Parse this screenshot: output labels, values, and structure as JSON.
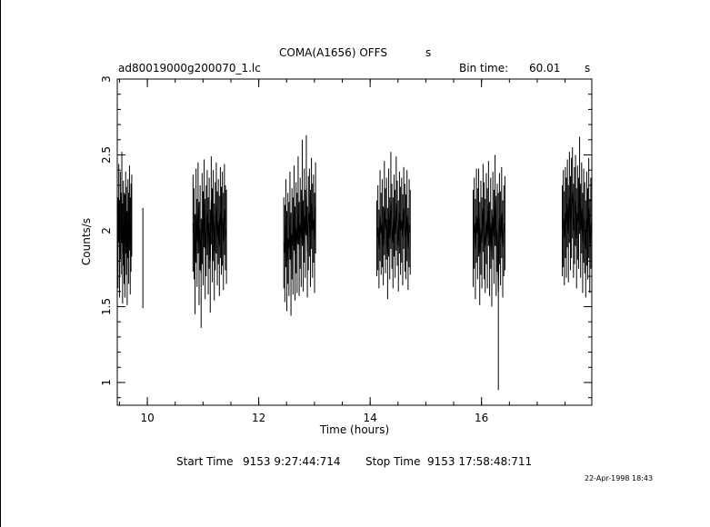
{
  "header": {
    "title": "COMA(A1656)  OFFS",
    "title_suffix": "s",
    "file_name": "ad80019000g200070_1.lc",
    "bin_time_label": "Bin time:",
    "bin_time_value": "60.01",
    "bin_time_unit": "s"
  },
  "footer": {
    "start_label": "Start Time",
    "start_value": "9153  9:27:44:714",
    "stop_label": "Stop Time",
    "stop_value": "9153 17:58:48:711",
    "date_stamp": "22-Apr-1998 18:43"
  },
  "chart_data": {
    "type": "scatter",
    "xlabel": "Time (hours)",
    "ylabel": "Counts/s",
    "xlim": [
      9.46,
      17.98
    ],
    "ylim": [
      0.85,
      3.0
    ],
    "x_ticks": [
      10,
      12,
      14,
      16
    ],
    "y_ticks": [
      1,
      1.5,
      2,
      2.5,
      3
    ],
    "x_tick_labels": [
      "10",
      "12",
      "14",
      "16"
    ],
    "y_tick_labels": [
      "1",
      "1.5",
      "2",
      "2.5",
      "3"
    ],
    "x_minor_step": 0.5,
    "y_minor_step": 0.1,
    "grid": false,
    "error_bars": true,
    "segments": [
      {
        "start": 9.46,
        "end": 9.72,
        "y": [
          2.05,
          1.92,
          2.18,
          1.88,
          2.1,
          1.98,
          2.22,
          1.85,
          2.05,
          1.95,
          1.9,
          2.12,
          2.0,
          1.82,
          2.08,
          1.95,
          2.15,
          1.9,
          2.02,
          2.1
        ],
        "err": [
          0.28,
          0.3,
          0.26,
          0.32,
          0.29,
          0.27,
          0.3,
          0.33,
          0.28,
          0.3,
          0.34,
          0.27,
          0.29,
          0.31,
          0.26,
          0.3,
          0.28,
          0.32,
          0.29,
          0.27
        ]
      },
      {
        "start": 9.92,
        "end": 9.92,
        "y": [
          1.82
        ],
        "err": [
          0.33
        ]
      },
      {
        "start": 10.82,
        "end": 11.42,
        "y": [
          2.05,
          1.98,
          1.78,
          2.1,
          1.92,
          2.15,
          1.85,
          2.02,
          1.72,
          2.08,
          1.95,
          2.18,
          1.88,
          2.0,
          2.12,
          1.9,
          2.05,
          1.8,
          2.2,
          1.97,
          2.1,
          1.86,
          2.03,
          2.15,
          1.95,
          2.06,
          1.9,
          2.12,
          2.0,
          2.08,
          1.93,
          2.14,
          2.02,
          1.96
        ],
        "err": [
          0.32,
          0.3,
          0.33,
          0.31,
          0.29,
          0.3,
          0.34,
          0.28,
          0.36,
          0.3,
          0.31,
          0.29,
          0.33,
          0.3,
          0.28,
          0.32,
          0.3,
          0.34,
          0.29,
          0.31,
          0.3,
          0.32,
          0.29,
          0.3,
          0.31,
          0.28,
          0.33,
          0.3,
          0.29,
          0.31,
          0.32,
          0.3,
          0.28,
          0.31
        ]
      },
      {
        "start": 12.45,
        "end": 13.02,
        "y": [
          1.92,
          1.85,
          2.05,
          1.8,
          1.95,
          1.88,
          2.1,
          1.78,
          1.98,
          1.9,
          2.15,
          1.85,
          2.02,
          1.92,
          2.2,
          1.88,
          2.05,
          1.95,
          2.25,
          1.9,
          2.1,
          1.98,
          2.3,
          1.86,
          2.05,
          2.12,
          1.95,
          2.18,
          2.0,
          2.08,
          1.92,
          2.15
        ],
        "err": [
          0.3,
          0.32,
          0.29,
          0.33,
          0.3,
          0.31,
          0.29,
          0.34,
          0.3,
          0.32,
          0.28,
          0.31,
          0.3,
          0.33,
          0.29,
          0.31,
          0.3,
          0.32,
          0.35,
          0.3,
          0.31,
          0.29,
          0.33,
          0.3,
          0.31,
          0.29,
          0.32,
          0.3,
          0.31,
          0.29,
          0.33,
          0.3
        ]
      },
      {
        "start": 14.12,
        "end": 14.72,
        "y": [
          1.95,
          2.02,
          1.88,
          2.1,
          1.98,
          2.05,
          1.9,
          2.15,
          2.0,
          2.08,
          1.85,
          2.12,
          1.95,
          2.2,
          2.03,
          1.92,
          2.1,
          1.98,
          2.18,
          2.05,
          1.9,
          2.12,
          2.0,
          2.07,
          1.94,
          2.15,
          2.02,
          1.96,
          2.1,
          1.88,
          2.05,
          1.99
        ],
        "err": [
          0.25,
          0.28,
          0.26,
          0.3,
          0.27,
          0.29,
          0.26,
          0.31,
          0.28,
          0.27,
          0.3,
          0.29,
          0.27,
          0.32,
          0.28,
          0.3,
          0.27,
          0.29,
          0.31,
          0.28,
          0.3,
          0.27,
          0.29,
          0.28,
          0.3,
          0.27,
          0.29,
          0.28,
          0.3,
          0.27,
          0.29,
          0.28
        ]
      },
      {
        "start": 15.85,
        "end": 16.42,
        "y": [
          1.95,
          2.05,
          1.88,
          2.1,
          1.98,
          2.12,
          1.85,
          2.02,
          1.92,
          2.15,
          2.0,
          1.9,
          2.08,
          1.95,
          2.18,
          1.88,
          2.05,
          1.82,
          2.1,
          1.96,
          2.2,
          1.9,
          2.02,
          1.6,
          2.08,
          1.95,
          2.12,
          1.88,
          2.0,
          2.05
        ],
        "err": [
          0.32,
          0.3,
          0.33,
          0.31,
          0.3,
          0.29,
          0.34,
          0.31,
          0.3,
          0.29,
          0.32,
          0.31,
          0.3,
          0.33,
          0.28,
          0.31,
          0.3,
          0.32,
          0.29,
          0.31,
          0.3,
          0.33,
          0.29,
          0.65,
          0.3,
          0.31,
          0.3,
          0.32,
          0.3,
          0.31
        ]
      },
      {
        "start": 17.45,
        "end": 17.98,
        "y": [
          2.0,
          2.08,
          1.95,
          2.12,
          2.02,
          2.18,
          1.98,
          2.22,
          2.05,
          2.15,
          2.25,
          2.0,
          2.1,
          2.2,
          1.95,
          2.12,
          2.05,
          2.3,
          2.0,
          2.15,
          1.92,
          2.1,
          2.02,
          1.88,
          2.08,
          1.98,
          2.15,
          1.9,
          2.05,
          1.95
        ],
        "err": [
          0.3,
          0.32,
          0.31,
          0.3,
          0.33,
          0.29,
          0.32,
          0.3,
          0.31,
          0.33,
          0.3,
          0.31,
          0.32,
          0.3,
          0.33,
          0.31,
          0.3,
          0.32,
          0.31,
          0.3,
          0.33,
          0.31,
          0.3,
          0.32,
          0.31,
          0.3,
          0.33,
          0.31,
          0.3,
          0.32
        ]
      }
    ]
  }
}
